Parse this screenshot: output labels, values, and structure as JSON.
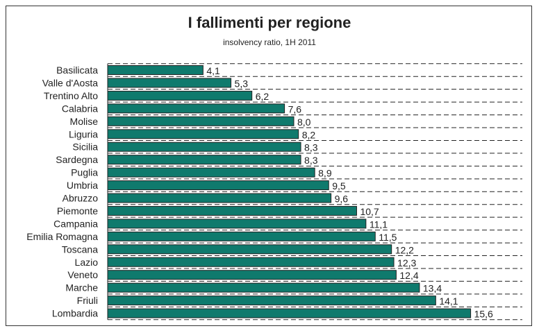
{
  "chart_data": {
    "type": "bar",
    "orientation": "horizontal",
    "title": "I fallimenti per regione",
    "subtitle": "insolvency ratio, 1H 2011",
    "categories": [
      "Basilicata",
      "Valle d'Aosta",
      "Trentino Alto",
      "Calabria",
      "Molise",
      "Liguria",
      "Sicilia",
      "Sardegna",
      "Puglia",
      "Umbria",
      "Abruzzo",
      "Piemonte",
      "Campania",
      "Emilia Romagna",
      "Toscana",
      "Lazio",
      "Veneto",
      "Marche",
      "Friuli",
      "Lombardia"
    ],
    "values": [
      4.1,
      5.3,
      6.2,
      7.6,
      8.0,
      8.2,
      8.3,
      8.3,
      8.9,
      9.5,
      9.6,
      10.7,
      11.1,
      11.5,
      12.2,
      12.3,
      12.4,
      13.4,
      14.1,
      15.6
    ],
    "value_labels": [
      "4,1",
      "5,3",
      "6,2",
      "7,6",
      "8,0",
      "8,2",
      "8,3",
      "8,3",
      "8,9",
      "9,5",
      "9,6",
      "10,7",
      "11,1",
      "11,5",
      "12,2",
      "12,3",
      "12,4",
      "13,4",
      "14,1",
      "15,6"
    ],
    "bar_color": "#0f7a6d",
    "grid": "dashed-horizontal",
    "legend": "none"
  }
}
